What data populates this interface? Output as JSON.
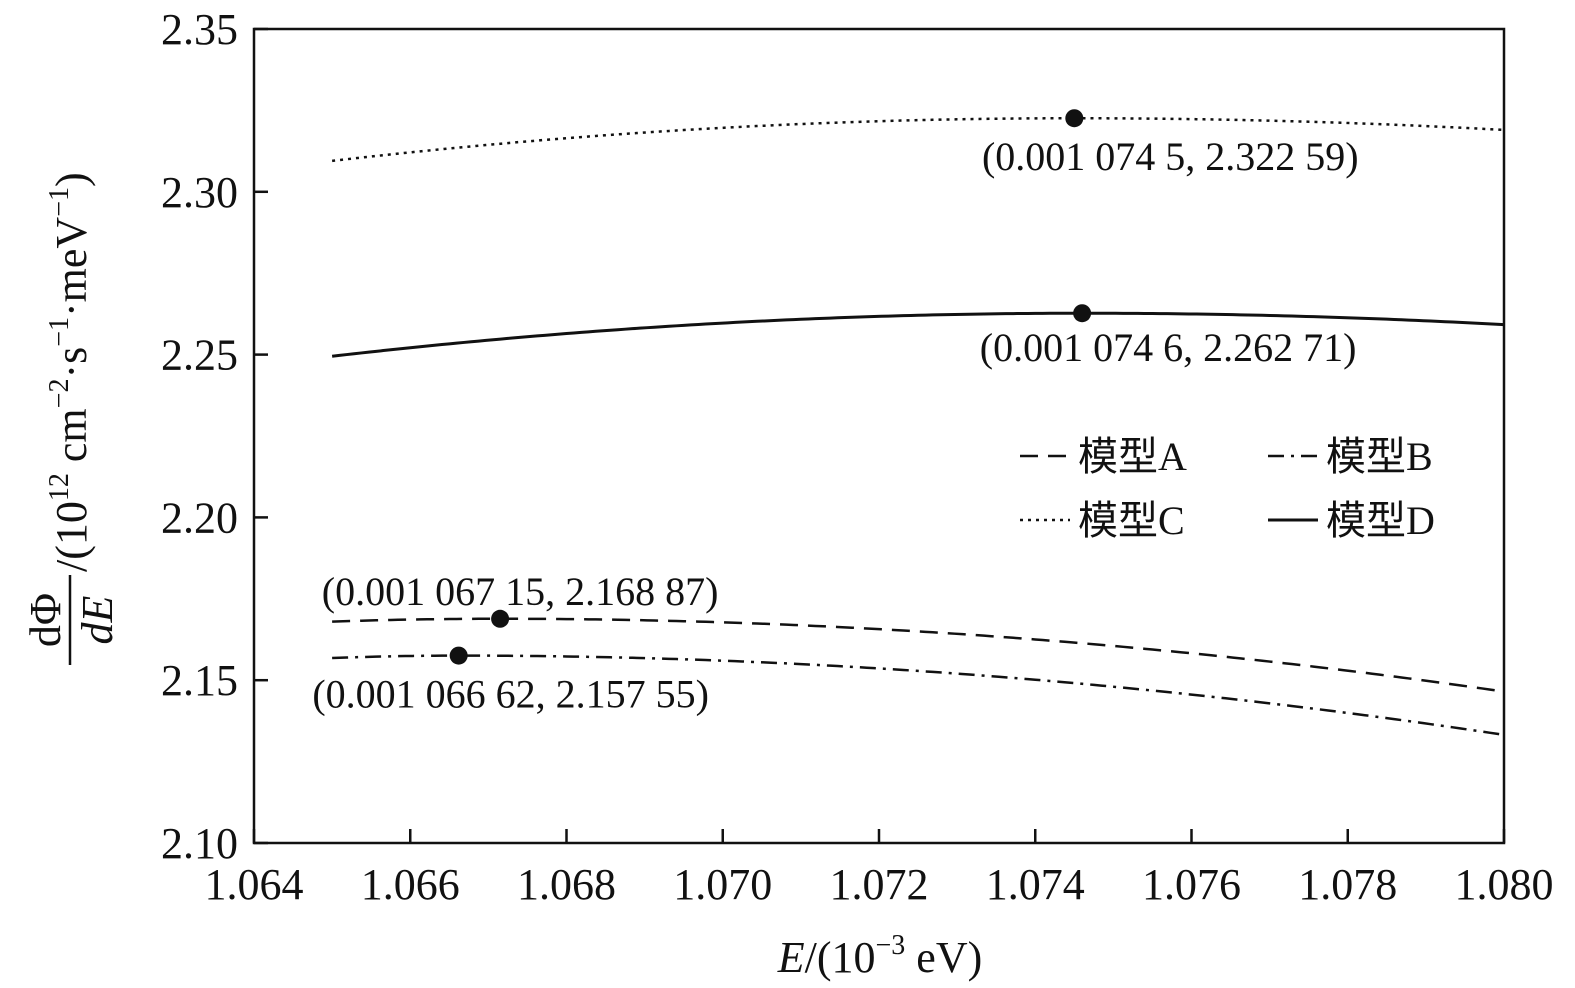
{
  "chart_data": {
    "type": "line",
    "title": "",
    "xlabel": "E/(10−3 eV)",
    "xlabel_parts": {
      "var": "E",
      "rest": "/(10",
      "sup": "−3",
      "unit": " eV)"
    },
    "ylabel_parts": {
      "frac_num": "dΦ",
      "frac_den": "dE",
      "rest1": "/(10",
      "sup1": "12",
      "rest2": " cm",
      "sup2": "−2",
      "rest3": "·s",
      "sup3": "−1",
      "rest4": "·meV",
      "sup4": "−1",
      "rest5": ")"
    },
    "xlim": [
      1.064,
      1.08
    ],
    "ylim": [
      2.1,
      2.35
    ],
    "xticks": [
      1.064,
      1.066,
      1.068,
      1.07,
      1.072,
      1.074,
      1.076,
      1.078,
      1.08
    ],
    "xtick_labels": [
      "1.064",
      "1.066",
      "1.068",
      "1.070",
      "1.072",
      "1.074",
      "1.076",
      "1.078",
      "1.080"
    ],
    "yticks": [
      2.1,
      2.15,
      2.2,
      2.25,
      2.3,
      2.35
    ],
    "ytick_labels": [
      "2.10",
      "2.15",
      "2.20",
      "2.25",
      "2.30",
      "2.35"
    ],
    "grid": false,
    "legend_position": "center-right",
    "series": [
      {
        "name": "模型A",
        "dash": "18,10",
        "peak": [
          1.06715,
          2.16887
        ],
        "end": [
          1.08,
          2.1465
        ],
        "start": [
          1.065,
          2.168
        ]
      },
      {
        "name": "模型B",
        "dash": "16,7,3,7",
        "peak": [
          1.06662,
          2.15755
        ],
        "end": [
          1.08,
          2.1332
        ],
        "start": [
          1.065,
          2.1568
        ]
      },
      {
        "name": "模型C",
        "dash": "3,5",
        "peak": [
          1.0745,
          2.32259
        ],
        "end": [
          1.08,
          2.319
        ],
        "start": [
          1.065,
          2.3095
        ]
      },
      {
        "name": "模型D",
        "dash": "",
        "peak": [
          1.0746,
          2.26271
        ],
        "end": [
          1.08,
          2.2592
        ],
        "start": [
          1.065,
          2.2495
        ]
      }
    ],
    "annotations": [
      {
        "text": "(0.001 074 5, 2.322 59)",
        "x": 1.0745,
        "y": 2.32259
      },
      {
        "text": "(0.001 074 6, 2.262 71)",
        "x": 1.0746,
        "y": 2.26271
      },
      {
        "text": "(0.001 067 15, 2.168 87)",
        "x": 1.06715,
        "y": 2.16887
      },
      {
        "text": "(0.001 066 62, 2.157 55)",
        "x": 1.06662,
        "y": 2.15755
      }
    ]
  }
}
